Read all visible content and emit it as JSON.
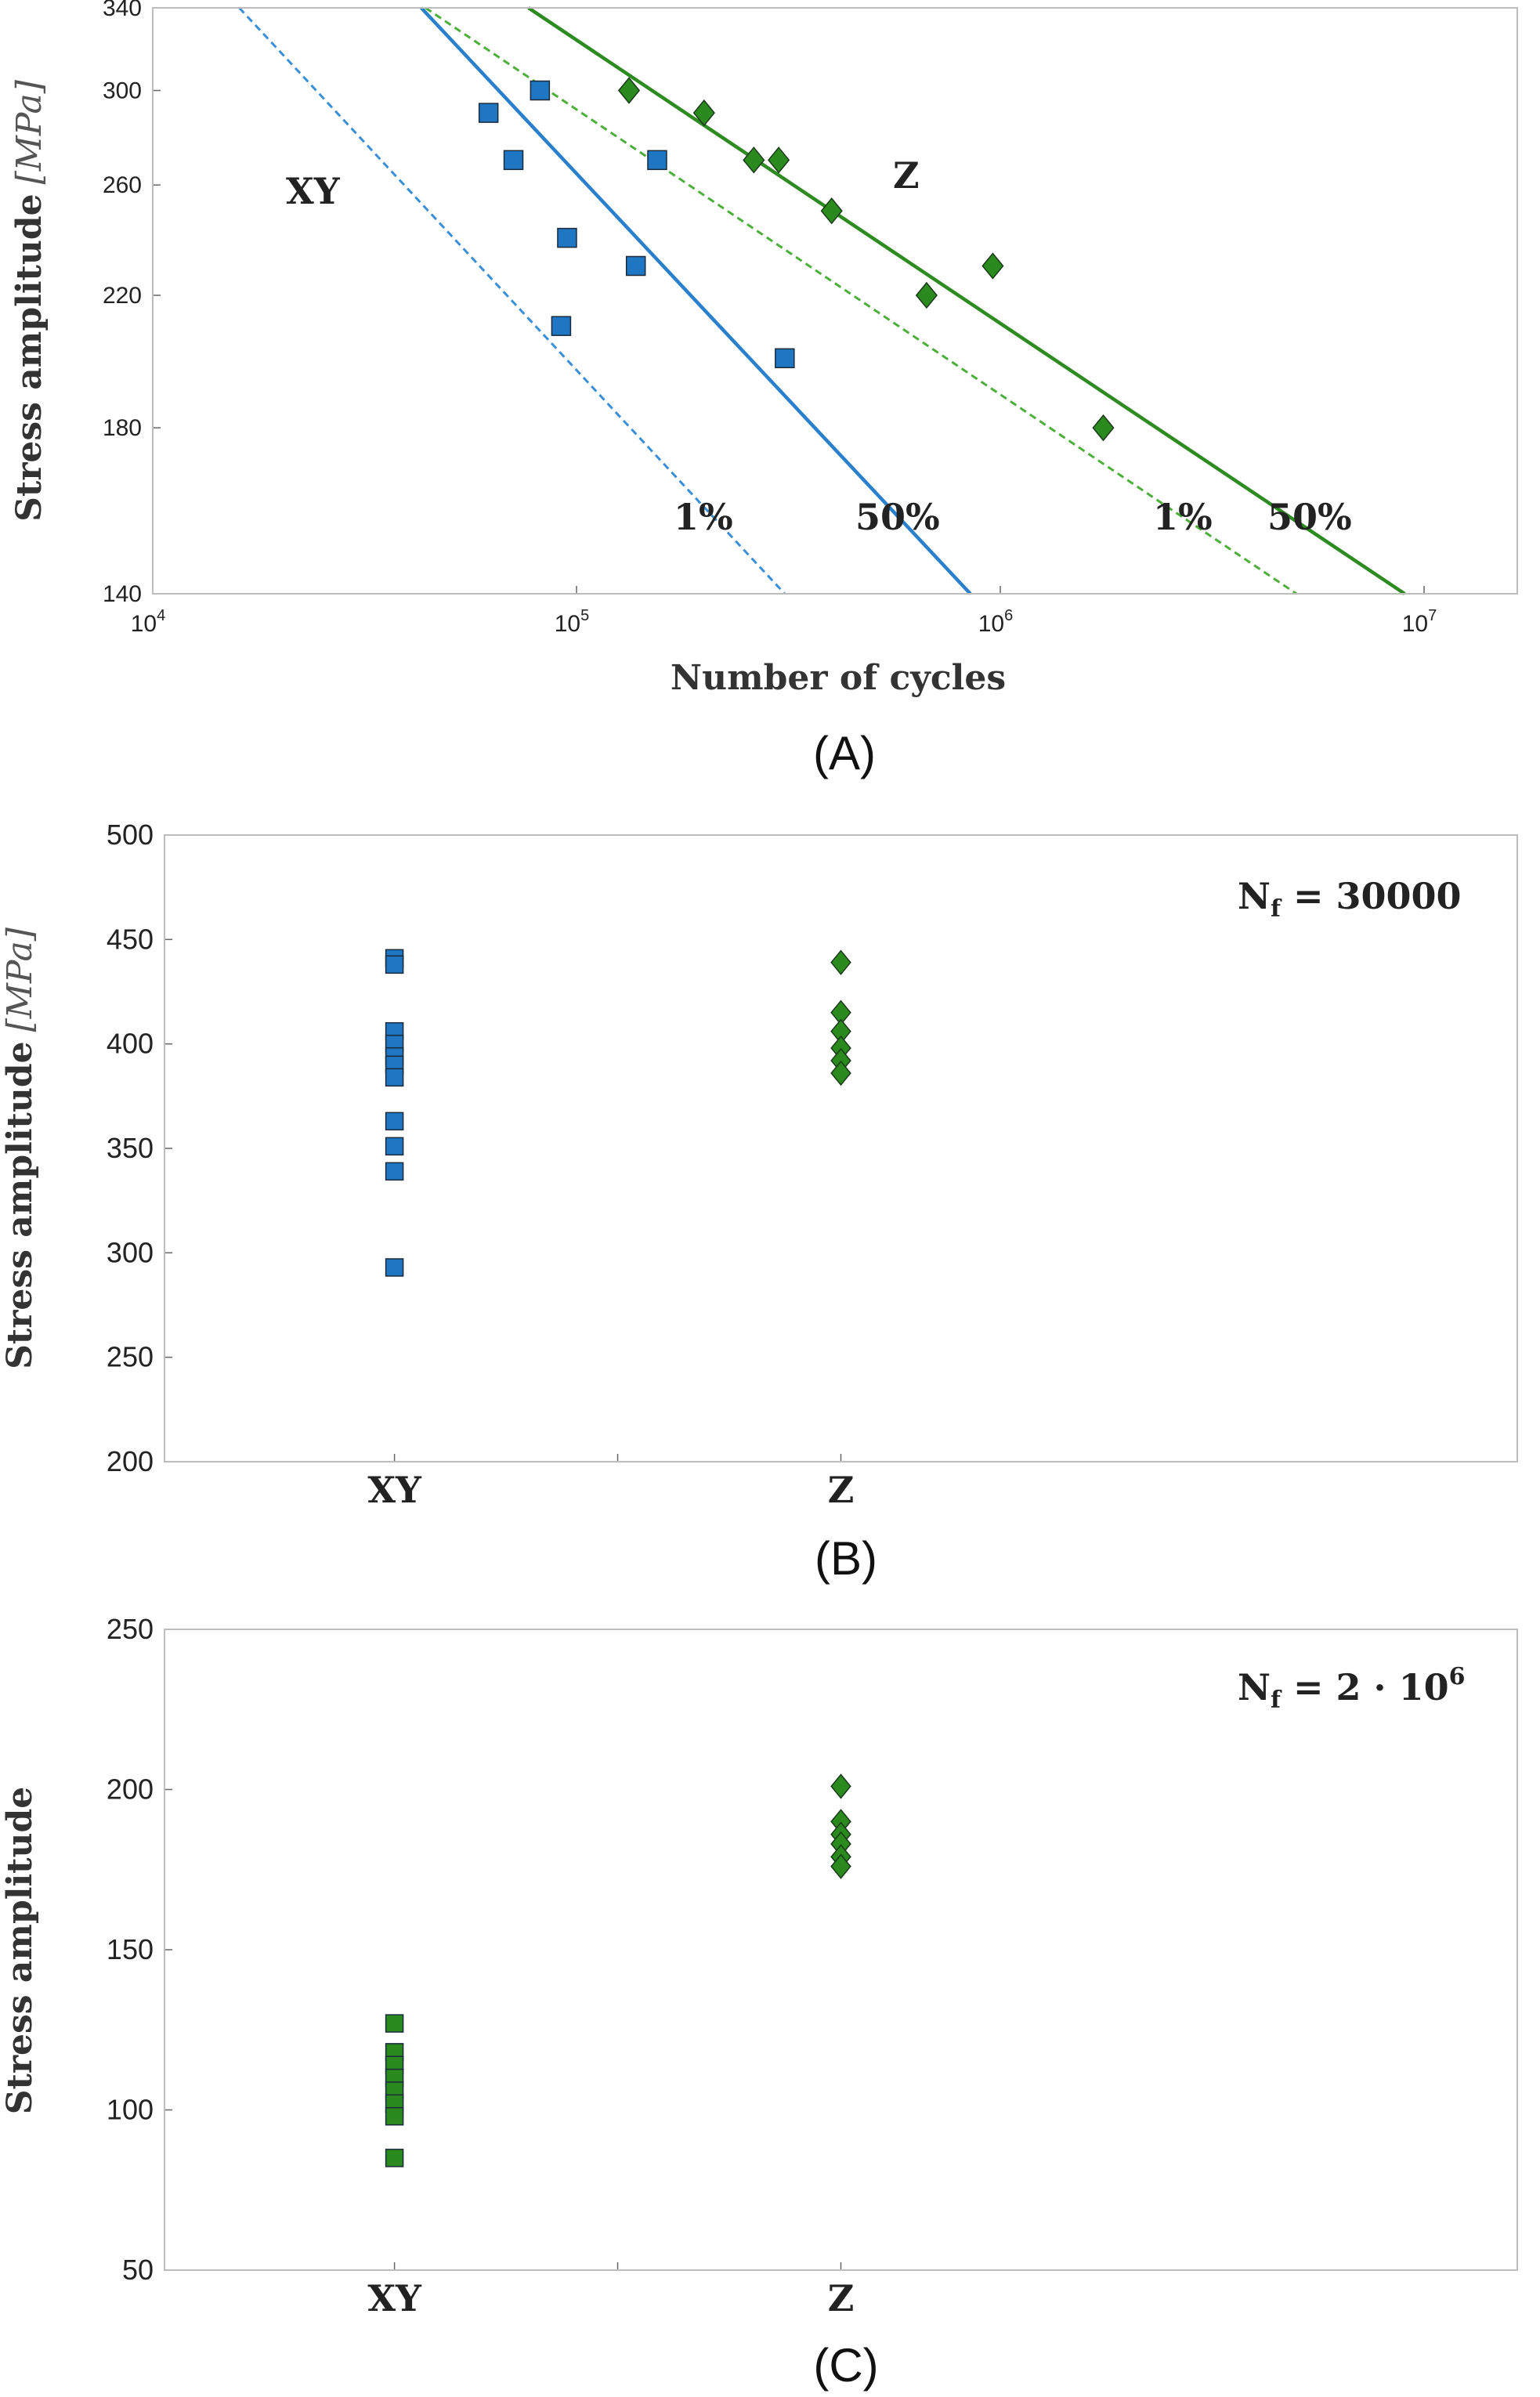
{
  "chart_data": [
    {
      "panel_label": "(A)",
      "type": "scatter",
      "xlabel": "Number of cycles",
      "ylabel": "Stress amplitude",
      "ylabel_unit": "[MPa]",
      "xscale": "log",
      "yscale": "log",
      "xlim": [
        10000,
        20000000
      ],
      "ylim": [
        140,
        340
      ],
      "xticks": [
        {
          "value": 10000,
          "base": "10",
          "exp": "4"
        },
        {
          "value": 100000,
          "base": "10",
          "exp": "5"
        },
        {
          "value": 1000000,
          "base": "10",
          "exp": "6"
        },
        {
          "value": 10000000,
          "base": "10",
          "exp": "7"
        }
      ],
      "yticks": [
        "140",
        "180",
        "220",
        "260",
        "300",
        "340"
      ],
      "series": [
        {
          "marker": "square",
          "color": "#1f77c4",
          "points": [
            [
              62000,
              290
            ],
            [
              82000,
              300
            ],
            [
              71000,
              270
            ],
            [
              155000,
              270
            ],
            [
              95000,
              240
            ],
            [
              138000,
              230
            ],
            [
              92000,
              210
            ],
            [
              310000,
              200
            ]
          ]
        },
        {
          "marker": "diamond",
          "color": "#2a8a1e",
          "points": [
            [
              133000,
              300
            ],
            [
              200000,
              290
            ],
            [
              262000,
              270
            ],
            [
              300000,
              270
            ],
            [
              400000,
              250
            ],
            [
              670000,
              220
            ],
            [
              960000,
              230
            ],
            [
              1750000,
              180
            ]
          ]
        }
      ],
      "lines": [
        {
          "color": "#3b8fd6",
          "dash": "dashed",
          "label": "1%",
          "from": [
            16000,
            340
          ],
          "to": [
            310000,
            140
          ]
        },
        {
          "color": "#2a80cc",
          "dash": "solid",
          "label": "50%",
          "from": [
            43000,
            340
          ],
          "to": [
            850000,
            140
          ]
        },
        {
          "color": "#4caf3a",
          "dash": "dashed",
          "label": "1%",
          "from": [
            44000,
            340
          ],
          "to": [
            5000000,
            140
          ]
        },
        {
          "color": "#2e8b22",
          "dash": "solid",
          "label": "50%",
          "from": [
            77000,
            340
          ],
          "to": [
            9000000,
            140
          ]
        }
      ],
      "annotations": [
        "XY",
        "Z"
      ]
    },
    {
      "panel_label": "(B)",
      "type": "scatter",
      "ylabel": "Stress amplitude",
      "ylabel_unit": "[MPa]",
      "ylim": [
        200,
        500
      ],
      "yticks": [
        "200",
        "250",
        "300",
        "350",
        "400",
        "450",
        "500"
      ],
      "categories": [
        "XY",
        "Z"
      ],
      "annotation": {
        "main": "N",
        "sub": "f",
        "rest": " = 30000"
      },
      "series": [
        {
          "category": "XY",
          "marker": "square",
          "color": "#1f77c4",
          "values": [
            441,
            438,
            406,
            400,
            394,
            390,
            384,
            363,
            351,
            339,
            293
          ]
        },
        {
          "category": "Z",
          "marker": "diamond",
          "color": "#2a8a1e",
          "values": [
            439,
            415,
            406,
            398,
            392,
            386
          ]
        }
      ]
    },
    {
      "panel_label": "(C)",
      "type": "scatter",
      "ylabel": "Stress amplitude",
      "ylim": [
        50,
        250
      ],
      "yticks": [
        "50",
        "100",
        "150",
        "200",
        "250"
      ],
      "categories": [
        "XY",
        "Z"
      ],
      "annotation": {
        "main": "N",
        "sub": "f",
        "rest": " = 2 · 10",
        "sup": "6"
      },
      "series": [
        {
          "category": "XY",
          "marker": "square",
          "color": "#2a8a1e",
          "values": [
            127,
            118,
            114,
            110,
            106,
            102,
            98,
            85
          ]
        },
        {
          "category": "Z",
          "marker": "diamond",
          "color": "#2a8a1e",
          "values": [
            201,
            190,
            186,
            183,
            179,
            176
          ]
        }
      ]
    }
  ]
}
